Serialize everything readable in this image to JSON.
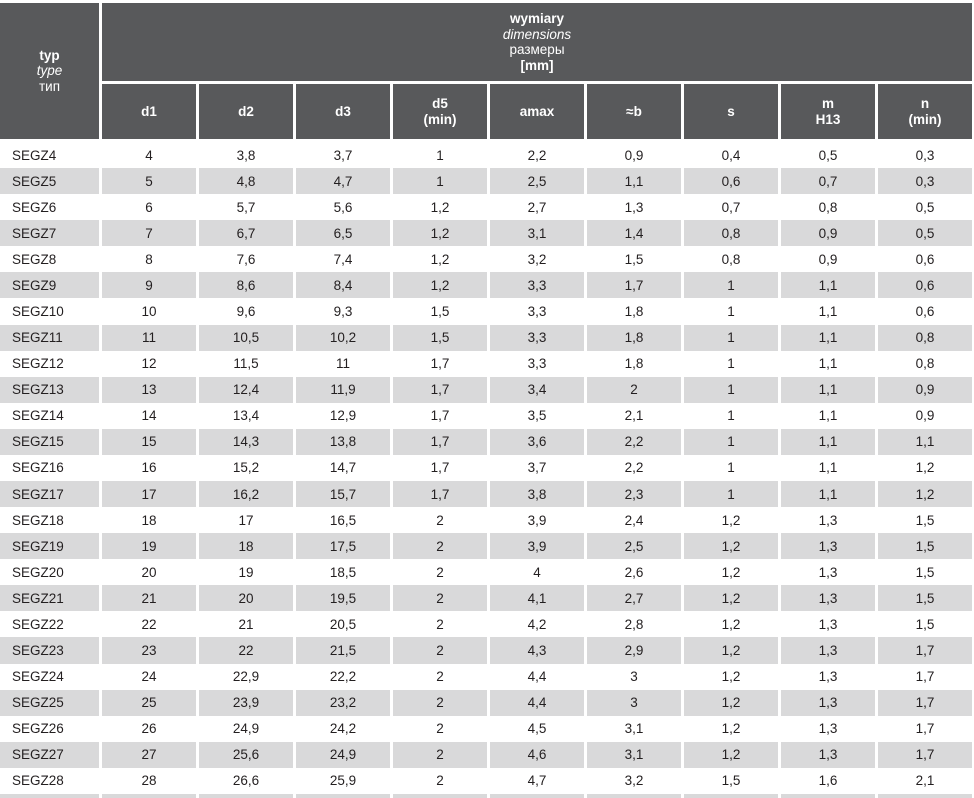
{
  "colors": {
    "header_bg": "#58595b",
    "header_text": "#ffffff",
    "row_alt_bg": "#d9d9da",
    "row_bg": "#ffffff",
    "cell_text": "#231f20"
  },
  "header": {
    "type_lines": [
      "typ",
      "type",
      "тип"
    ],
    "group_lines": [
      "wymiary",
      "dimensions",
      "размеры",
      "[mm]"
    ],
    "columns": [
      {
        "line1": "d1",
        "line2": ""
      },
      {
        "line1": "d2",
        "line2": ""
      },
      {
        "line1": "d3",
        "line2": ""
      },
      {
        "line1": "d5",
        "line2": "(min)"
      },
      {
        "line1": "amax",
        "line2": ""
      },
      {
        "line1": "≈b",
        "line2": ""
      },
      {
        "line1": "s",
        "line2": ""
      },
      {
        "line1": "m",
        "line2": "H13"
      },
      {
        "line1": "n",
        "line2": "(min)"
      }
    ]
  },
  "rows": [
    {
      "type": "SEGZ4",
      "values": [
        "4",
        "3,8",
        "3,7",
        "1",
        "2,2",
        "0,9",
        "0,4",
        "0,5",
        "0,3"
      ]
    },
    {
      "type": "SEGZ5",
      "values": [
        "5",
        "4,8",
        "4,7",
        "1",
        "2,5",
        "1,1",
        "0,6",
        "0,7",
        "0,3"
      ]
    },
    {
      "type": "SEGZ6",
      "values": [
        "6",
        "5,7",
        "5,6",
        "1,2",
        "2,7",
        "1,3",
        "0,7",
        "0,8",
        "0,5"
      ]
    },
    {
      "type": "SEGZ7",
      "values": [
        "7",
        "6,7",
        "6,5",
        "1,2",
        "3,1",
        "1,4",
        "0,8",
        "0,9",
        "0,5"
      ]
    },
    {
      "type": "SEGZ8",
      "values": [
        "8",
        "7,6",
        "7,4",
        "1,2",
        "3,2",
        "1,5",
        "0,8",
        "0,9",
        "0,6"
      ]
    },
    {
      "type": "SEGZ9",
      "values": [
        "9",
        "8,6",
        "8,4",
        "1,2",
        "3,3",
        "1,7",
        "1",
        "1,1",
        "0,6"
      ]
    },
    {
      "type": "SEGZ10",
      "values": [
        "10",
        "9,6",
        "9,3",
        "1,5",
        "3,3",
        "1,8",
        "1",
        "1,1",
        "0,6"
      ]
    },
    {
      "type": "SEGZ11",
      "values": [
        "11",
        "10,5",
        "10,2",
        "1,5",
        "3,3",
        "1,8",
        "1",
        "1,1",
        "0,8"
      ]
    },
    {
      "type": "SEGZ12",
      "values": [
        "12",
        "11,5",
        "11",
        "1,7",
        "3,3",
        "1,8",
        "1",
        "1,1",
        "0,8"
      ]
    },
    {
      "type": "SEGZ13",
      "values": [
        "13",
        "12,4",
        "11,9",
        "1,7",
        "3,4",
        "2",
        "1",
        "1,1",
        "0,9"
      ]
    },
    {
      "type": "SEGZ14",
      "values": [
        "14",
        "13,4",
        "12,9",
        "1,7",
        "3,5",
        "2,1",
        "1",
        "1,1",
        "0,9"
      ]
    },
    {
      "type": "SEGZ15",
      "values": [
        "15",
        "14,3",
        "13,8",
        "1,7",
        "3,6",
        "2,2",
        "1",
        "1,1",
        "1,1"
      ]
    },
    {
      "type": "SEGZ16",
      "values": [
        "16",
        "15,2",
        "14,7",
        "1,7",
        "3,7",
        "2,2",
        "1",
        "1,1",
        "1,2"
      ]
    },
    {
      "type": "SEGZ17",
      "values": [
        "17",
        "16,2",
        "15,7",
        "1,7",
        "3,8",
        "2,3",
        "1",
        "1,1",
        "1,2"
      ]
    },
    {
      "type": "SEGZ18",
      "values": [
        "18",
        "17",
        "16,5",
        "2",
        "3,9",
        "2,4",
        "1,2",
        "1,3",
        "1,5"
      ]
    },
    {
      "type": "SEGZ19",
      "values": [
        "19",
        "18",
        "17,5",
        "2",
        "3,9",
        "2,5",
        "1,2",
        "1,3",
        "1,5"
      ]
    },
    {
      "type": "SEGZ20",
      "values": [
        "20",
        "19",
        "18,5",
        "2",
        "4",
        "2,6",
        "1,2",
        "1,3",
        "1,5"
      ]
    },
    {
      "type": "SEGZ21",
      "values": [
        "21",
        "20",
        "19,5",
        "2",
        "4,1",
        "2,7",
        "1,2",
        "1,3",
        "1,5"
      ]
    },
    {
      "type": "SEGZ22",
      "values": [
        "22",
        "21",
        "20,5",
        "2",
        "4,2",
        "2,8",
        "1,2",
        "1,3",
        "1,5"
      ]
    },
    {
      "type": "SEGZ23",
      "values": [
        "23",
        "22",
        "21,5",
        "2",
        "4,3",
        "2,9",
        "1,2",
        "1,3",
        "1,7"
      ]
    },
    {
      "type": "SEGZ24",
      "values": [
        "24",
        "22,9",
        "22,2",
        "2",
        "4,4",
        "3",
        "1,2",
        "1,3",
        "1,7"
      ]
    },
    {
      "type": "SEGZ25",
      "values": [
        "25",
        "23,9",
        "23,2",
        "2",
        "4,4",
        "3",
        "1,2",
        "1,3",
        "1,7"
      ]
    },
    {
      "type": "SEGZ26",
      "values": [
        "26",
        "24,9",
        "24,2",
        "2",
        "4,5",
        "3,1",
        "1,2",
        "1,3",
        "1,7"
      ]
    },
    {
      "type": "SEGZ27",
      "values": [
        "27",
        "25,6",
        "24,9",
        "2",
        "4,6",
        "3,1",
        "1,2",
        "1,3",
        "1,7"
      ]
    },
    {
      "type": "SEGZ28",
      "values": [
        "28",
        "26,6",
        "25,9",
        "2",
        "4,7",
        "3,2",
        "1,5",
        "1,6",
        "2,1"
      ]
    }
  ]
}
